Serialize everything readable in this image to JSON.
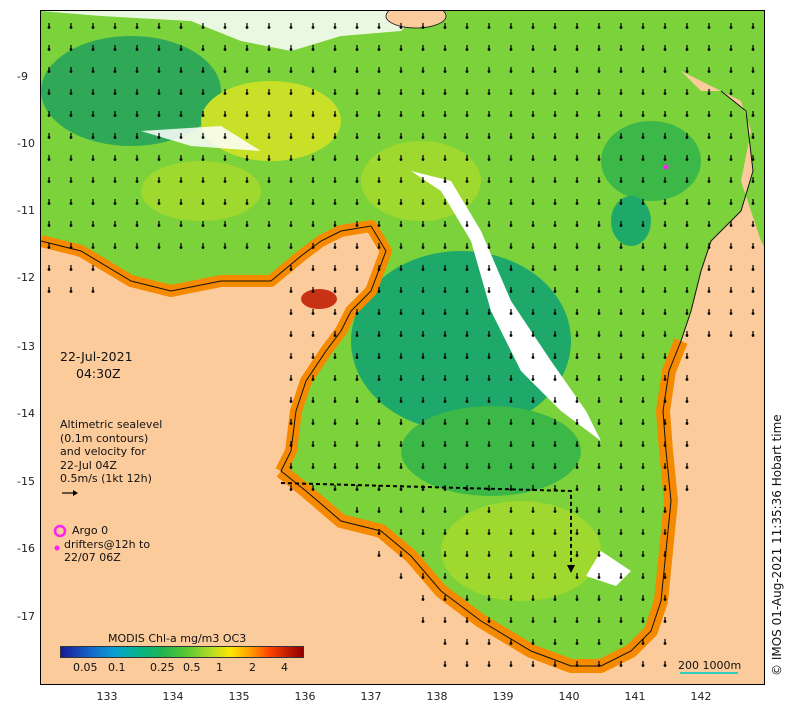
{
  "map": {
    "lat_ticks": [
      "-9",
      "-10",
      "-11",
      "-12",
      "-13",
      "-14",
      "-15",
      "-16",
      "-17"
    ],
    "lon_ticks": [
      "133",
      "134",
      "135",
      "136",
      "137",
      "138",
      "139",
      "140",
      "141",
      "142"
    ],
    "colors": {
      "land": "#fccb9c",
      "no_data": "#ffffff",
      "chl_low": "#12a070",
      "chl_mid": "#5ac832",
      "chl_high": "#ffe600",
      "coast": "#ff6a00",
      "argo": "#ff22ee"
    }
  },
  "date_label": {
    "date": "22-Jul-2021",
    "time": "04:30Z"
  },
  "legend": {
    "line1": "Altimetric sealevel",
    "line2": "(0.1m contours)",
    "line3": "and velocity for",
    "line4": "22-Jul 04Z",
    "line5": "0.5m/s (1kt 12h)"
  },
  "argo": {
    "line1": "Argo 0",
    "line2": "drifters@12h to",
    "line3": "22/07 06Z"
  },
  "colorbar": {
    "title": "MODIS Chl-a mg/m3 OC3",
    "labels": [
      "0.05",
      "0.1",
      "0.25",
      "0.5",
      "1",
      "2",
      "4"
    ]
  },
  "scale": {
    "text": "200  1000m"
  },
  "credit": "© IMOS 01-Aug-2021 11:35:36 Hobart time"
}
